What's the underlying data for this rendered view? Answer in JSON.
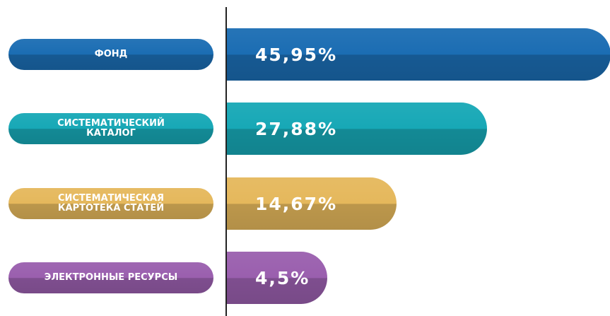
{
  "chart_data": {
    "type": "bar",
    "orientation": "horizontal",
    "categories": [
      "ФОНД",
      "СИСТЕМАТИЧЕСКИЙ КАТАЛОГ",
      "СИСТЕМАТИЧЕСКАЯ КАРТОТЕКА СТАТЕЙ",
      "ЭЛЕКТРОННЫЕ РЕСУРСЫ"
    ],
    "values": [
      45.95,
      27.88,
      14.67,
      4.5
    ],
    "value_labels": [
      "45,95%",
      "27,88%",
      "14,67%",
      "4,5%"
    ],
    "colors": [
      "#1b6db3",
      "#17a8b6",
      "#e5b85c",
      "#9a5fae"
    ]
  }
}
